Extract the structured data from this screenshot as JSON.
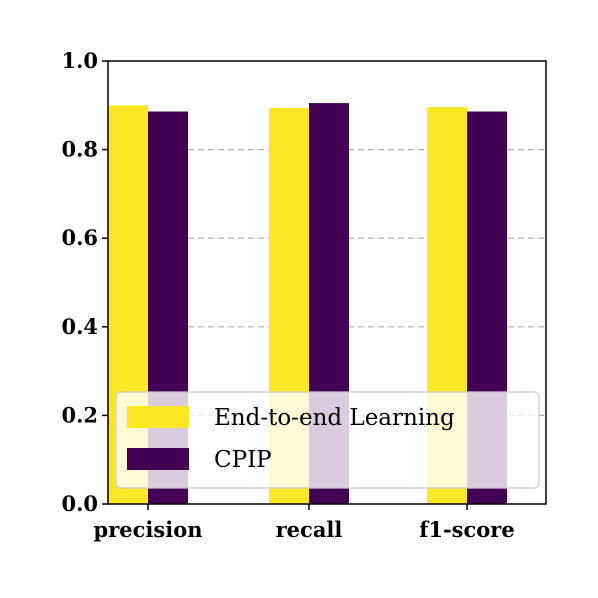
{
  "colors": {
    "series_1": "#fde725",
    "series_2": "#440154",
    "grid": "#b0b0b0",
    "axes": "#000000",
    "legend_border": "#cccccc"
  },
  "chart_data": {
    "type": "bar",
    "title": "",
    "xlabel": "",
    "ylabel": "",
    "categories": [
      "precision",
      "recall",
      "f1-score"
    ],
    "series": [
      {
        "name": "End-to-end Learning",
        "values": [
          0.9,
          0.894,
          0.896
        ]
      },
      {
        "name": "CPIP",
        "values": [
          0.886,
          0.905,
          0.886
        ]
      }
    ],
    "ylim": [
      0.0,
      1.0
    ],
    "yticks": [
      "0.0",
      "0.2",
      "0.4",
      "0.6",
      "0.8",
      "1.0"
    ],
    "grid": "horizontal dashed",
    "legend": "lower-left"
  }
}
